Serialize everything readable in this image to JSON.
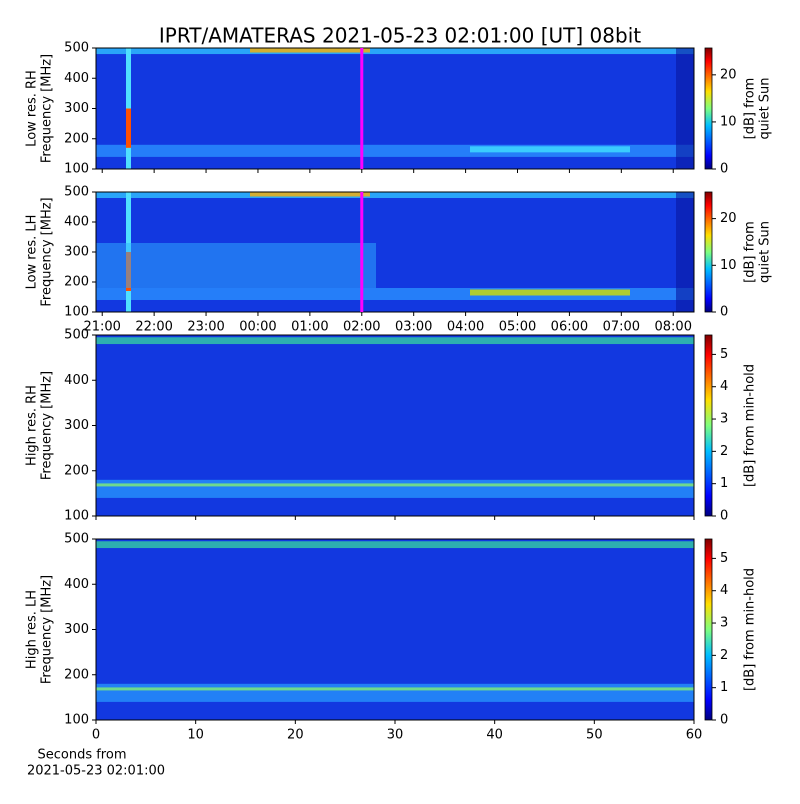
{
  "chart_data": {
    "type": "spectrogram",
    "title": "IPRT/AMATERAS 2021-05-23 02:01:00 [UT]   08bit",
    "panels": [
      {
        "ylabel": [
          "Low res. RH",
          "Frequency [MHz]"
        ],
        "ylim": [
          100,
          500
        ],
        "yticks": [
          100,
          200,
          300,
          400,
          500
        ],
        "clim": [
          0,
          25.7
        ],
        "cticks": [
          0,
          10,
          20
        ],
        "clabel": [
          "[dB] from",
          "quiet Sun"
        ]
      },
      {
        "ylabel": [
          "Low res. LH",
          "Frequency [MHz]"
        ],
        "ylim": [
          100,
          500
        ],
        "yticks": [
          100,
          200,
          300,
          400,
          500
        ],
        "clim": [
          0,
          25.7
        ],
        "cticks": [
          0,
          10,
          20
        ],
        "clabel": [
          "[dB] from",
          "quiet Sun"
        ],
        "xlim": [
          -3.12,
          8.4
        ],
        "xticks": [
          {
            "value": -3,
            "label": "21:00"
          },
          {
            "value": -2,
            "label": "22:00"
          },
          {
            "value": -1,
            "label": "23:00"
          },
          {
            "value": 0,
            "label": "00:00"
          },
          {
            "value": 1,
            "label": "01:00"
          },
          {
            "value": 2,
            "label": "02:00"
          },
          {
            "value": 3,
            "label": "03:00"
          },
          {
            "value": 4,
            "label": "04:00"
          },
          {
            "value": 5,
            "label": "05:00"
          },
          {
            "value": 6,
            "label": "06:00"
          },
          {
            "value": 7,
            "label": "07:00"
          },
          {
            "value": 8,
            "label": "08:00"
          }
        ],
        "marker_x": 2,
        "marker_color": "#ff00ff"
      },
      {
        "ylabel": [
          "High res. RH",
          "Frequency [MHz]"
        ],
        "ylim": [
          100,
          500
        ],
        "yticks": [
          100,
          200,
          300,
          400,
          500
        ],
        "clim": [
          0,
          5.6
        ],
        "cticks": [
          0,
          1,
          2,
          3,
          4,
          5
        ],
        "clabel": [
          "[dB] from min-hold"
        ]
      },
      {
        "ylabel": [
          "High res. LH",
          "Frequency [MHz]"
        ],
        "ylim": [
          100,
          500
        ],
        "yticks": [
          100,
          200,
          300,
          400,
          500
        ],
        "clim": [
          0,
          5.6
        ],
        "cticks": [
          0,
          1,
          2,
          3,
          4,
          5
        ],
        "clabel": [
          "[dB] from min-hold"
        ],
        "xlim": [
          0,
          60
        ],
        "xticks": [
          0,
          10,
          20,
          30,
          40,
          50,
          60
        ],
        "xlabel": [
          "Seconds from",
          "2021-05-23 02:01:00"
        ]
      }
    ]
  }
}
